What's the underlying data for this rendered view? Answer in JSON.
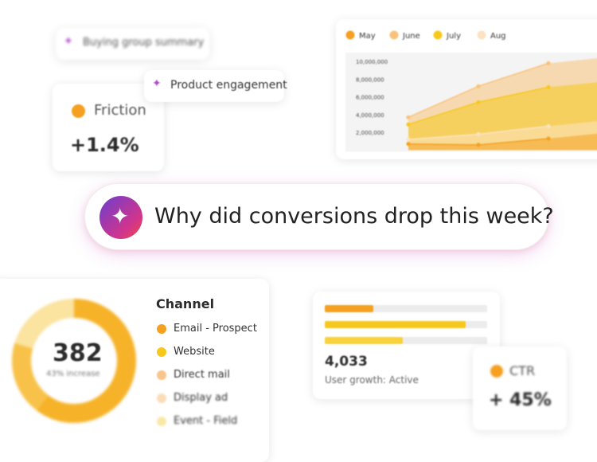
{
  "pills": {
    "buying_group": "Buying group summary",
    "product_engagement": "Product engagement"
  },
  "friction_card": {
    "label": "Friction",
    "value": "+1.4%",
    "color": "#f5a020"
  },
  "area_chart": {
    "type": "area",
    "legend": [
      {
        "name": "May",
        "color": "#f5a020"
      },
      {
        "name": "June",
        "color": "#f9c27a"
      },
      {
        "name": "July",
        "color": "#f6c81c"
      },
      {
        "name": "Aug",
        "color": "#fbe3c2"
      }
    ],
    "categories": [
      null,
      null,
      null
    ],
    "series": [
      {
        "name": "June",
        "color": "#f9c27a",
        "values": [
          3700000,
          7200000,
          9800000
        ]
      },
      {
        "name": "July",
        "color": "#f6c81c",
        "values": [
          2900000,
          5400000,
          7100000
        ]
      },
      {
        "name": "Aug",
        "color": "#fbe3c2",
        "values": [
          1200000,
          1800000,
          2700000
        ]
      },
      {
        "name": "May",
        "color": "#f5a020",
        "values": [
          700000,
          600000,
          1300000
        ]
      }
    ],
    "ylim": [
      0,
      11000000
    ],
    "yticks": [
      {
        "value": 2000000,
        "label": "2,000,000"
      },
      {
        "value": 4000000,
        "label": "4,000,000"
      },
      {
        "value": 6000000,
        "label": "6,000,000"
      },
      {
        "value": 8000000,
        "label": "8,000,000"
      },
      {
        "value": 10000000,
        "label": "10,000,000"
      }
    ]
  },
  "query": {
    "text": "Why did conversions drop this week?"
  },
  "donut_card": {
    "value": "382",
    "caption": "43% increase"
  },
  "channel_legend": {
    "title": "Channel",
    "items": [
      {
        "label": "Email - Prospect",
        "color": "#f5a020"
      },
      {
        "label": "Website",
        "color": "#f6c81c"
      },
      {
        "label": "Direct mail",
        "color": "#f9c58a"
      },
      {
        "label": "Display ad",
        "color": "#fbdcb8"
      },
      {
        "label": "Event - Field",
        "color": "#fbe7a6"
      }
    ]
  },
  "bar_card": {
    "xlim": [
      0,
      100
    ],
    "bars": [
      {
        "value": 30,
        "color": "#f5a020"
      },
      {
        "value": 87,
        "color": "#f6c81c"
      },
      {
        "value": 48,
        "color": "#f7d23c"
      }
    ],
    "value": "4,033",
    "caption": "User growth: Active"
  },
  "ctr_card": {
    "label": "CTR",
    "value": "+ 45%",
    "color": "#f5a020"
  }
}
